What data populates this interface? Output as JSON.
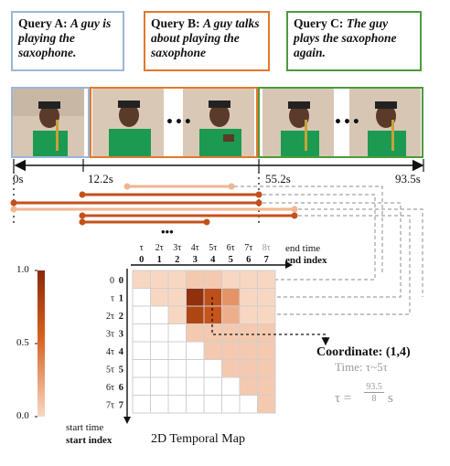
{
  "queries": {
    "a": {
      "label": "Query A:",
      "text": "A guy is playing the saxophone."
    },
    "b": {
      "label": "Query B:",
      "text": "A guy talks about playing the saxophone"
    },
    "c": {
      "label": "Query C:",
      "text": "The guy plays the saxophone again."
    }
  },
  "timeline": {
    "marks": [
      "0s",
      "12.2s",
      "55.2s",
      "93.5s"
    ],
    "ellipsis": "•••"
  },
  "map": {
    "top_time_ticks": [
      "τ",
      "2τ",
      "3τ",
      "4τ",
      "5τ",
      "6τ",
      "7τ",
      "8τ"
    ],
    "top_index_ticks": [
      "0",
      "1",
      "2",
      "3",
      "4",
      "5",
      "6",
      "7"
    ],
    "left_time_ticks": [
      "0",
      "τ",
      "2τ",
      "3τ",
      "4τ",
      "5τ",
      "6τ",
      "7τ"
    ],
    "left_index_ticks": [
      "0",
      "1",
      "2",
      "3",
      "4",
      "5",
      "6",
      "7"
    ],
    "end_time_label": "end time",
    "end_index_label": "end index",
    "start_time_label": "start time",
    "start_index_label": "start index",
    "title": "2D Temporal Map",
    "scores": [
      [
        0.05,
        0.05,
        0.05,
        0.1,
        0.1,
        0.05,
        0.05,
        0.05
      ],
      [
        null,
        0.05,
        0.05,
        0.95,
        0.65,
        0.3,
        0.05,
        0.05
      ],
      [
        null,
        null,
        0.05,
        0.75,
        0.6,
        0.2,
        0.05,
        0.05
      ],
      [
        null,
        null,
        null,
        0.1,
        0.1,
        0.1,
        0.1,
        0.1
      ],
      [
        null,
        null,
        null,
        null,
        0.1,
        0.1,
        0.1,
        0.1
      ],
      [
        null,
        null,
        null,
        null,
        null,
        0.1,
        0.1,
        0.1
      ],
      [
        null,
        null,
        null,
        null,
        null,
        null,
        0.1,
        0.1
      ],
      [
        null,
        null,
        null,
        null,
        null,
        null,
        null,
        0.1
      ]
    ]
  },
  "colorbar": {
    "ticks": [
      "1.0",
      "0.5",
      "0.0"
    ],
    "max_color": "#8a2a0a",
    "min_color": "#f9d8c4"
  },
  "coordinate": {
    "label": "Coordinate: (1,4)",
    "time": "Time: τ~5τ",
    "formula_lhs": "τ =",
    "formula_num": "93.5",
    "formula_den": "8",
    "formula_unit": "s"
  },
  "colors": {
    "query_a": "#9cb7d8",
    "query_b": "#e3782d",
    "query_c": "#4d9a3c",
    "dark_orange": "#c4501a",
    "light_orange": "#f2b58f"
  }
}
